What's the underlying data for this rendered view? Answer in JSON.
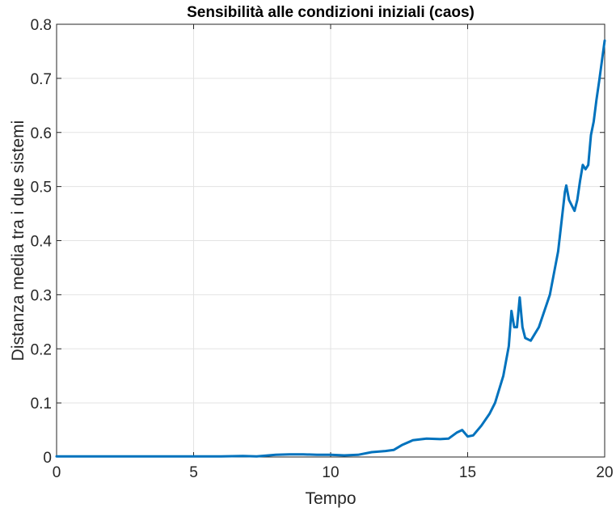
{
  "chart_data": {
    "type": "line",
    "title": "Sensibilità alle condizioni iniziali (caos)",
    "xlabel": "Tempo",
    "ylabel": "Distanza media tra i due sistemi",
    "xlim": [
      0,
      20
    ],
    "ylim": [
      0,
      0.8
    ],
    "xticks": [
      "0",
      "5",
      "10",
      "15",
      "20"
    ],
    "yticks": [
      "0",
      "0.1",
      "0.2",
      "0.3",
      "0.4",
      "0.5",
      "0.6",
      "0.7",
      "0.8"
    ],
    "grid": true,
    "line_color": "#0072BD",
    "series": [
      {
        "x": [
          0,
          2,
          4,
          5,
          6,
          6.8,
          7.3,
          8,
          8.5,
          9,
          9.5,
          10,
          10.5,
          11,
          11.5,
          12,
          12.3,
          12.6,
          13,
          13.5,
          14,
          14.3,
          14.6,
          14.8,
          15,
          15.2,
          15.5,
          15.8,
          16,
          16.3,
          16.5,
          16.6,
          16.7,
          16.8,
          16.9,
          17,
          17.1,
          17.3,
          17.6,
          18,
          18.3,
          18.55,
          18.6,
          18.7,
          18.9,
          19,
          19.1,
          19.2,
          19.3,
          19.4,
          19.5,
          19.6,
          19.7,
          19.8,
          20
        ],
        "y": [
          0.001,
          0.001,
          0.001,
          0.001,
          0.001,
          0.002,
          0.001,
          0.004,
          0.005,
          0.005,
          0.004,
          0.004,
          0.003,
          0.004,
          0.009,
          0.011,
          0.013,
          0.022,
          0.031,
          0.034,
          0.033,
          0.034,
          0.045,
          0.05,
          0.038,
          0.04,
          0.058,
          0.08,
          0.1,
          0.15,
          0.205,
          0.27,
          0.24,
          0.24,
          0.295,
          0.24,
          0.22,
          0.215,
          0.24,
          0.3,
          0.38,
          0.49,
          0.502,
          0.475,
          0.455,
          0.475,
          0.51,
          0.54,
          0.532,
          0.54,
          0.595,
          0.62,
          0.66,
          0.695,
          0.77
        ]
      }
    ]
  }
}
